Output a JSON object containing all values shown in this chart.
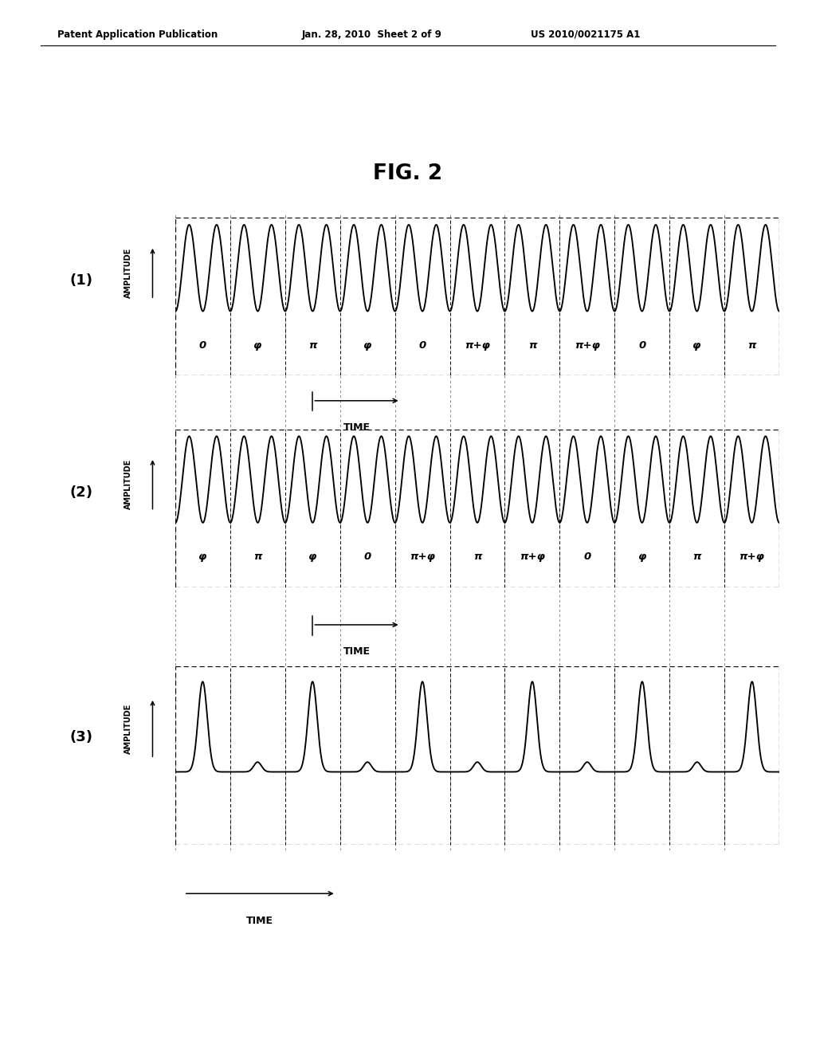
{
  "title": "FIG. 2",
  "header_left": "Patent Application Publication",
  "header_center": "Jan. 28, 2010  Sheet 2 of 9",
  "header_right": "US 2010/0021175 A1",
  "panel1_label": "(1)",
  "panel2_label": "(2)",
  "panel3_label": "(3)",
  "amplitude_label": "AMPLITUDE",
  "time_label": "TIME",
  "panel1_phases": [
    "0",
    "φ",
    "π",
    "φ",
    "0",
    "π+φ",
    "π",
    "π+φ",
    "0",
    "φ",
    "π"
  ],
  "panel2_phases": [
    "φ",
    "π",
    "φ",
    "0",
    "π+φ",
    "π",
    "π+φ",
    "0",
    "φ",
    "π",
    "π+φ"
  ],
  "bg_color": "#ffffff",
  "n_slots": 11,
  "cycles_per_slot": 2
}
